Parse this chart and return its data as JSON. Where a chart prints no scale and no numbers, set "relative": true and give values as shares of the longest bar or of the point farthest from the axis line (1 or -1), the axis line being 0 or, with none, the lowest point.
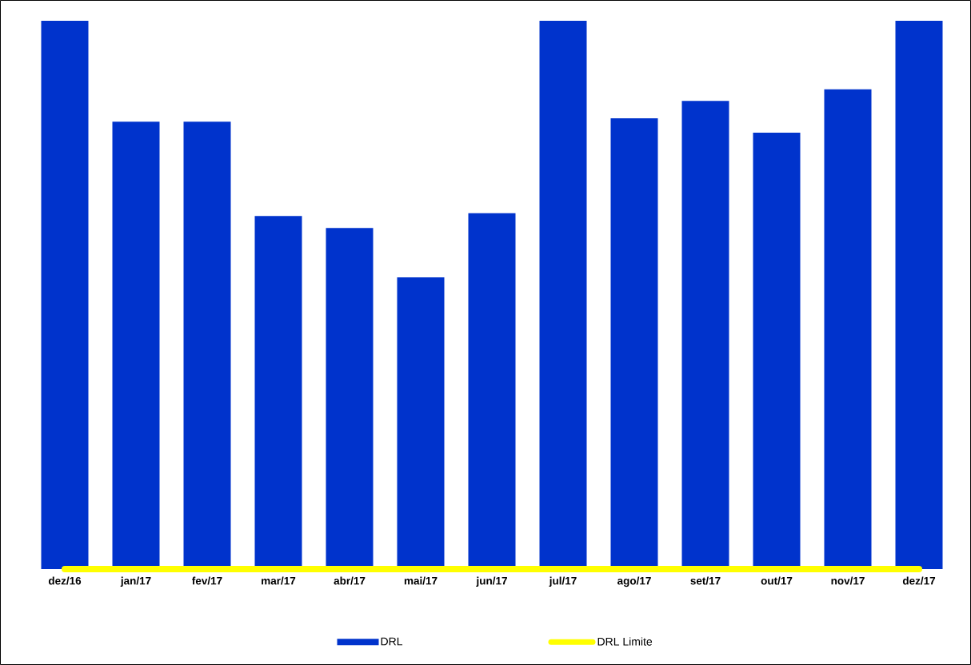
{
  "chart_data": {
    "type": "bar",
    "relative": true,
    "legend": "bottom",
    "marker": "none",
    "categories": [
      "dez/16",
      "jan/17",
      "fev/17",
      "mar/17",
      "abr/17",
      "mai/17",
      "jun/17",
      "jul/17",
      "ago/17",
      "set/17",
      "out/17",
      "nov/17",
      "dez/17"
    ],
    "series": [
      {
        "name": "DRL",
        "color": "#0033cc",
        "values": [
          1,
          0.816,
          0.816,
          0.644,
          0.622,
          0.532,
          0.649,
          1,
          0.822,
          0.854,
          0.796,
          0.875,
          1
        ]
      },
      {
        "name": "DRL Limite",
        "type": "line",
        "color": "#ffff00",
        "values": [
          0,
          0,
          0,
          0,
          0,
          0,
          0,
          0,
          0,
          0,
          0,
          0,
          0
        ]
      }
    ]
  }
}
